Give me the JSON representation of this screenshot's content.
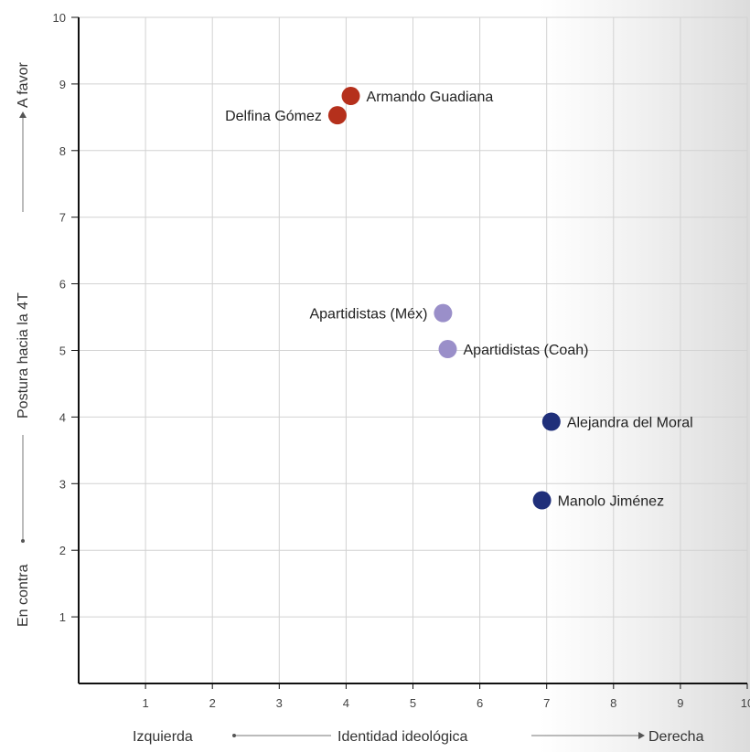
{
  "chart_data": {
    "type": "scatter",
    "xlim": [
      0,
      10
    ],
    "ylim": [
      0,
      10
    ],
    "xticks": [
      1,
      2,
      3,
      4,
      5,
      6,
      7,
      8,
      9,
      10
    ],
    "yticks": [
      1,
      2,
      3,
      4,
      5,
      6,
      7,
      8,
      9,
      10
    ],
    "grid": true,
    "xlabel": {
      "center": "Identidad ideológica",
      "left": "Izquierda",
      "right": "Derecha"
    },
    "ylabel": {
      "center": "Postura hacia la 4T",
      "bottom": "En contra",
      "top": "A favor"
    },
    "points": [
      {
        "name": "Armando Guadiana",
        "x": 4.07,
        "y": 8.82,
        "color": "#b5301c",
        "label_side": "right"
      },
      {
        "name": "Delfina Gómez",
        "x": 3.87,
        "y": 8.53,
        "color": "#b5301c",
        "label_side": "left"
      },
      {
        "name": "Apartidistas (Méx)",
        "x": 5.45,
        "y": 5.56,
        "color": "#9a8fc9",
        "label_side": "left"
      },
      {
        "name": "Apartidistas (Coah)",
        "x": 5.52,
        "y": 5.02,
        "color": "#9a8fc9",
        "label_side": "right"
      },
      {
        "name": "Alejandra del Moral",
        "x": 7.07,
        "y": 3.93,
        "color": "#1f2f7a",
        "label_side": "right"
      },
      {
        "name": "Manolo Jiménez",
        "x": 6.93,
        "y": 2.75,
        "color": "#1f2f7a",
        "label_side": "right"
      }
    ]
  }
}
